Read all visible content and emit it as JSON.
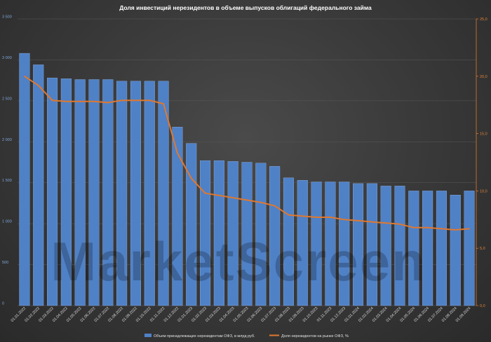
{
  "chart_data": {
    "type": "bar",
    "title": "Доля инвестиций нерезидентов в объеме выпусков облигаций федерального займа",
    "watermark": "MarketScreen",
    "categories": [
      "01.01.2022",
      "01.02.2022",
      "01.03.2022",
      "01.04.2022",
      "01.05.2022",
      "01.06.2022",
      "01.07.2022",
      "01.08.2022",
      "01.09.2022",
      "01.10.2022",
      "01.11.2022",
      "01.12.2022",
      "01.01.2023",
      "01.02.2023",
      "01.03.2023",
      "01.04.2023",
      "01.05.2023",
      "01.06.2023",
      "01.07.2023",
      "01.08.2023",
      "01.09.2023",
      "01.10.2023",
      "01.11.2023",
      "01.12.2023",
      "01.01.2024",
      "01.02.2024",
      "01.03.2024",
      "01.04.2024",
      "01.05.2024",
      "01.06.2024",
      "01.07.2024",
      "01.08.2024",
      "01.09.2024"
    ],
    "series": [
      {
        "name": "Объем принадлежащих нерезидентам ОФЗ, в млрд руб.",
        "type": "bar",
        "axis": "left",
        "color": "#4f81c7",
        "values": [
          3080,
          2940,
          2780,
          2770,
          2760,
          2760,
          2760,
          2740,
          2740,
          2740,
          2740,
          2180,
          1980,
          1770,
          1770,
          1760,
          1750,
          1740,
          1700,
          1560,
          1530,
          1510,
          1510,
          1510,
          1490,
          1490,
          1460,
          1460,
          1400,
          1400,
          1400,
          1350,
          1400
        ]
      },
      {
        "name": "Доля нерезидентов на рынке ОФЗ, %",
        "type": "line",
        "axis": "right",
        "color": "#e0782e",
        "values": [
          20.0,
          19.2,
          17.9,
          17.8,
          17.8,
          17.8,
          17.7,
          17.9,
          17.9,
          17.9,
          17.6,
          13.3,
          11.1,
          9.8,
          9.6,
          9.4,
          9.2,
          9.0,
          8.7,
          7.9,
          7.8,
          7.7,
          7.7,
          7.5,
          7.4,
          7.3,
          7.2,
          7.1,
          6.8,
          6.8,
          6.7,
          6.6,
          6.7
        ]
      }
    ],
    "y_left": {
      "min": 0,
      "max": 3500,
      "ticks": [
        "0",
        "500",
        "1 000",
        "1 500",
        "2 000",
        "2 500",
        "3 000",
        "3 500"
      ],
      "tick_values": [
        0,
        500,
        1000,
        1500,
        2000,
        2500,
        3000,
        3500
      ]
    },
    "y_right": {
      "min": 0,
      "max": 25,
      "ticks": [
        "0,0",
        "5,0",
        "10,0",
        "15,0",
        "20,0",
        "25,0"
      ],
      "tick_values": [
        0,
        5,
        10,
        15,
        20,
        25
      ]
    },
    "grid": true,
    "legend_position": "bottom-center"
  }
}
